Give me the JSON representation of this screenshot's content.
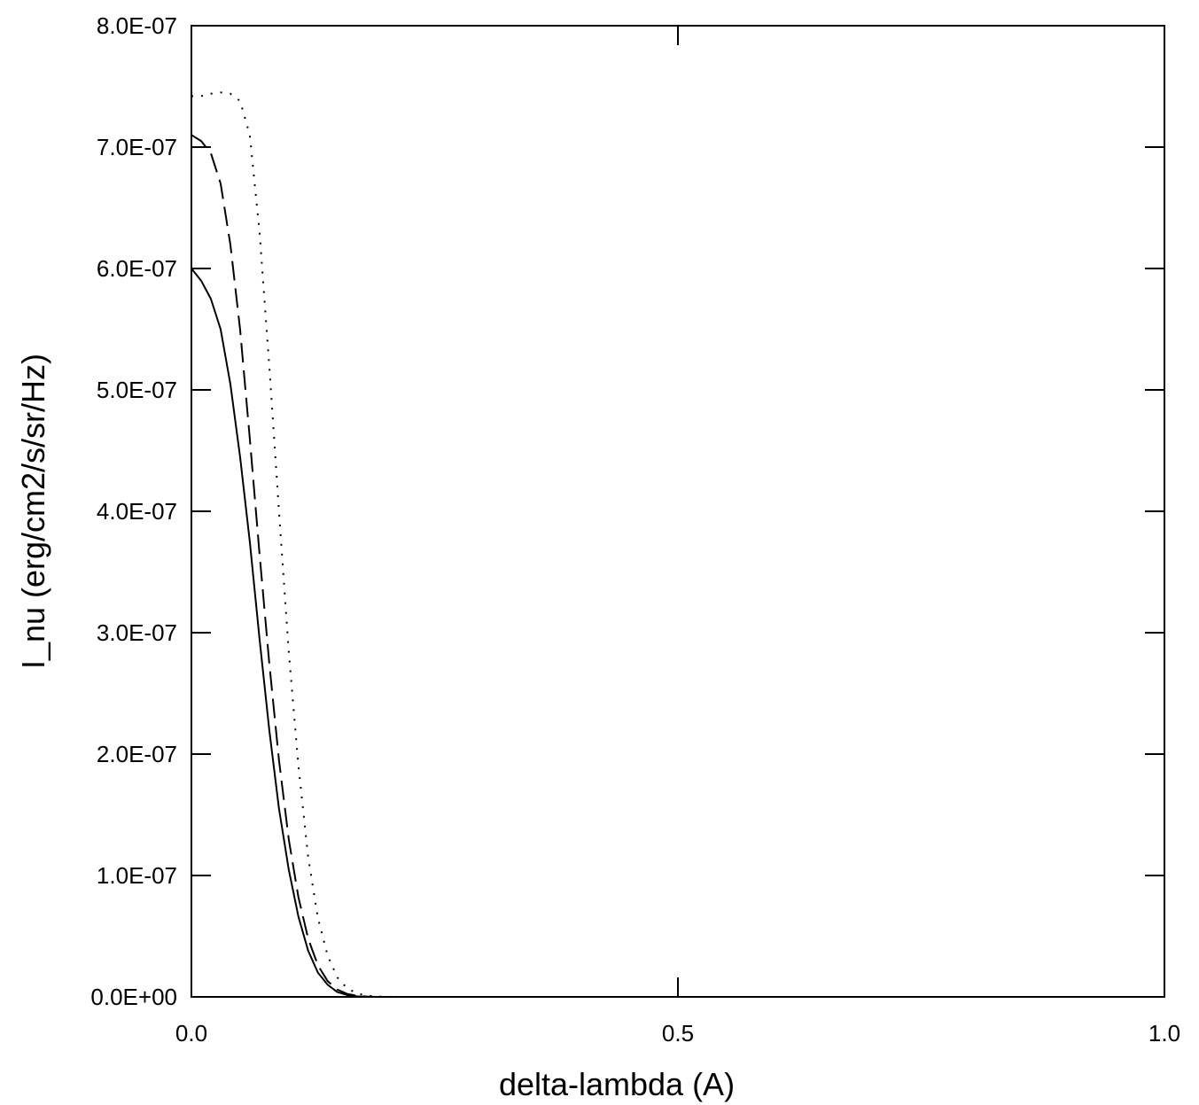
{
  "chart_data": {
    "type": "line",
    "title": "",
    "xlabel": "delta-lambda (A)",
    "ylabel": "I_nu (erg/cm2/s/sr/Hz)",
    "xlim": [
      0.0,
      1.0
    ],
    "ylim": [
      0.0,
      8e-07
    ],
    "grid": false,
    "legend": "none",
    "x_tick_labels": [
      "0.0",
      "0.5",
      "1.0"
    ],
    "y_tick_labels": [
      "0.0E+00",
      "1.0E-07",
      "2.0E-07",
      "3.0E-07",
      "4.0E-07",
      "5.0E-07",
      "6.0E-07",
      "7.0E-07",
      "8.0E-07"
    ],
    "series": [
      {
        "line_style": "solid",
        "color": "#000000",
        "x": [
          0.0,
          0.01,
          0.02,
          0.03,
          0.04,
          0.05,
          0.06,
          0.07,
          0.08,
          0.09,
          0.1,
          0.11,
          0.12,
          0.13,
          0.14,
          0.15,
          0.16,
          0.17,
          0.18,
          0.19,
          0.2,
          0.3,
          0.5,
          0.75,
          1.0
        ],
        "y": [
          6e-07,
          5.9e-07,
          5.75e-07,
          5.5e-07,
          5.05e-07,
          4.45e-07,
          3.75e-07,
          2.95e-07,
          2.2e-07,
          1.55e-07,
          1.05e-07,
          6.6e-08,
          3.8e-08,
          2e-08,
          1e-08,
          4e-09,
          1.5e-09,
          5e-10,
          1e-10,
          0,
          0,
          0,
          0,
          0,
          0
        ]
      },
      {
        "line_style": "dashed",
        "color": "#000000",
        "x": [
          0.0,
          0.01,
          0.02,
          0.03,
          0.04,
          0.05,
          0.06,
          0.07,
          0.08,
          0.09,
          0.1,
          0.11,
          0.12,
          0.13,
          0.14,
          0.15,
          0.16,
          0.17,
          0.18,
          0.19,
          0.2,
          0.3,
          0.5,
          0.75,
          1.0
        ],
        "y": [
          7.1e-07,
          7.05e-07,
          6.95e-07,
          6.7e-07,
          6.2e-07,
          5.5e-07,
          4.6e-07,
          3.65e-07,
          2.75e-07,
          1.95e-07,
          1.3e-07,
          8.2e-08,
          4.8e-08,
          2.6e-08,
          1.3e-08,
          6e-09,
          2.5e-09,
          1e-09,
          3e-10,
          0,
          0,
          0,
          0,
          0,
          0
        ]
      },
      {
        "line_style": "dotted",
        "color": "#000000",
        "x": [
          0.0,
          0.01,
          0.02,
          0.03,
          0.04,
          0.05,
          0.06,
          0.07,
          0.08,
          0.09,
          0.1,
          0.11,
          0.12,
          0.13,
          0.14,
          0.15,
          0.16,
          0.17,
          0.18,
          0.19,
          0.2,
          0.21,
          0.3,
          0.5,
          0.75,
          1.0
        ],
        "y": [
          7.42e-07,
          7.42e-07,
          7.44e-07,
          7.45e-07,
          7.44e-07,
          7.38e-07,
          7.1e-07,
          6.3e-07,
          5.2e-07,
          4e-07,
          2.85e-07,
          1.9e-07,
          1.15e-07,
          6.5e-08,
          3.4e-08,
          1.6e-08,
          7e-09,
          3e-09,
          1e-09,
          4e-10,
          1e-10,
          0,
          0,
          0,
          0,
          0
        ]
      }
    ]
  }
}
